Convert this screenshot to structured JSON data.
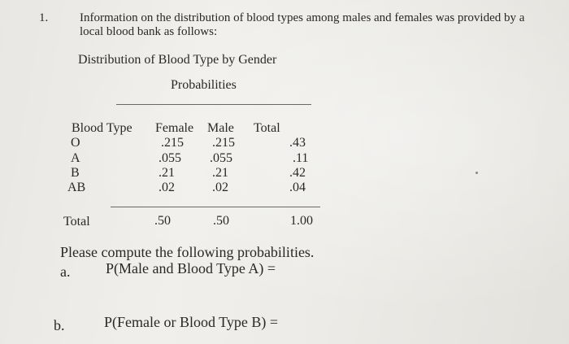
{
  "problem": {
    "number": "1.",
    "intro_line1": "Information on the distribution of blood types among males and females was provided by a",
    "intro_line2": "local blood bank as follows:"
  },
  "table": {
    "title": "Distribution of Blood Type by Gender",
    "subtitle": "Probabilities",
    "headers": [
      "Blood Type",
      "Female",
      "Male",
      "Total"
    ],
    "rows": [
      {
        "type": "O",
        "female": ".215",
        "male": ".215",
        "total": ".43"
      },
      {
        "type": "A",
        "female": ".055",
        "male": ".055",
        "total": ".11"
      },
      {
        "type": "B",
        "female": ".21",
        "male": ".21",
        "total": ".42"
      },
      {
        "type": "AB",
        "female": ".02",
        "male": ".02",
        "total": ".04"
      }
    ],
    "total_row": {
      "label": "Total",
      "female": ".50",
      "male": ".50",
      "total": "1.00"
    }
  },
  "questions": {
    "prompt": "Please compute the following probabilities.",
    "a_label": "a.",
    "a_text": "P(Male and Blood Type A) =",
    "b_label": "b.",
    "b_text": "P(Female or Blood Type B) ="
  }
}
